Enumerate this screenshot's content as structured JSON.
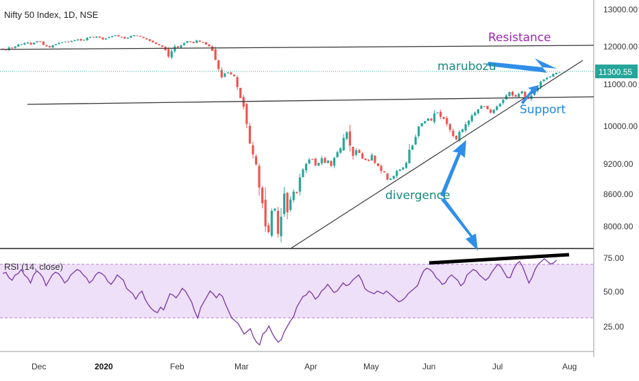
{
  "chart_title": "Nifty 50 Index, 1D, NSE",
  "price_label": "11300.55",
  "colors": {
    "up": "#26a69a",
    "down": "#ef5350",
    "rsi_line": "#7e3fa8",
    "rsi_band": "#e9d6f7",
    "price_line": "#26a69a",
    "resistance_text": "#9c27b0",
    "support_text": "#1e88e5",
    "marubozu_text": "#18897f",
    "divergence_text": "#18897f",
    "arrow": "#2f8fe8"
  },
  "annotations": {
    "resistance": "Resistance",
    "support": "Support",
    "marubozu": "marubozu",
    "divergence": "divergence"
  },
  "chart_data": [
    {
      "type": "candlestick",
      "title": "Nifty 50 Index, 1D, NSE",
      "y_ticks": [
        "13000.00",
        "12000.00",
        "11000.00",
        "10000.00",
        "9200.00",
        "8600.00",
        "8000.00"
      ],
      "x_ticks": [
        "Dec",
        "2020",
        "Feb",
        "Mar",
        "Apr",
        "May",
        "Jun",
        "Jul",
        "Aug"
      ],
      "last_price": 11300.55,
      "ohlc_note": "approximate daily closes read from chart",
      "closes": [
        11910,
        11900,
        11960,
        11940,
        11990,
        12040,
        12050,
        12080,
        12100,
        12040,
        12090,
        12130,
        12110,
        12030,
        11990,
        11960,
        12020,
        12050,
        12090,
        12100,
        12120,
        12110,
        12140,
        12160,
        12180,
        12150,
        12170,
        12230,
        12250,
        12240,
        12260,
        12230,
        12180,
        12210,
        12250,
        12270,
        12290,
        12260,
        12240,
        12200,
        12230,
        12280,
        12300,
        12280,
        12260,
        12220,
        12180,
        12140,
        12100,
        12060,
        12020,
        11980,
        11890,
        11720,
        11860,
        11990,
        11960,
        12020,
        12080,
        12130,
        12110,
        12080,
        12150,
        12120,
        12090,
        12040,
        11990,
        11870,
        11630,
        11390,
        11170,
        11270,
        11300,
        11250,
        11200,
        10920,
        10660,
        10450,
        10040,
        9620,
        9390,
        9180,
        8720,
        8420,
        7990,
        7890,
        8280,
        8320,
        7860,
        8170,
        8600,
        8250,
        8490,
        8640,
        8610,
        8920,
        9080,
        9190,
        9280,
        9280,
        9160,
        9210,
        9310,
        9210,
        9260,
        9150,
        9320,
        9440,
        9520,
        9740,
        9860,
        9580,
        9360,
        9480,
        9420,
        9300,
        9270,
        9250,
        9380,
        9210,
        9150,
        9050,
        9020,
        8880,
        8900,
        8950,
        9050,
        9080,
        9120,
        9210,
        9490,
        9580,
        9760,
        9980,
        10060,
        10110,
        10170,
        10120,
        10290,
        10310,
        10210,
        10160,
        10040,
        9910,
        9780,
        9710,
        9870,
        9920,
        10030,
        10120,
        10240,
        10310,
        10390,
        10470,
        10460,
        10390,
        10310,
        10380,
        10460,
        10520,
        10620,
        10720,
        10800,
        10720,
        10690,
        10760,
        10820,
        10690,
        10640,
        10720,
        10820,
        10920,
        11060,
        11110,
        11160,
        11190,
        11260,
        11290,
        11300
      ],
      "lines": {
        "resistance": {
          "label": "Resistance"
        },
        "support": {
          "label": "Support"
        },
        "trendline": {}
      }
    },
    {
      "type": "line",
      "title": "RSI (14, close)",
      "y_ticks": [
        "75.00",
        "50.00",
        "25.00"
      ],
      "ylim": [
        0,
        100
      ],
      "band": [
        30,
        70
      ],
      "values": [
        63,
        64,
        60,
        58,
        62,
        63,
        66,
        62,
        60,
        56,
        62,
        65,
        63,
        60,
        54,
        58,
        62,
        64,
        63,
        60,
        56,
        58,
        62,
        64,
        66,
        65,
        62,
        60,
        56,
        58,
        62,
        64,
        63,
        61,
        57,
        55,
        58,
        62,
        60,
        58,
        52,
        50,
        48,
        44,
        48,
        50,
        44,
        40,
        37,
        35,
        34,
        38,
        36,
        42,
        48,
        47,
        45,
        48,
        52,
        50,
        46,
        42,
        35,
        30,
        38,
        42,
        46,
        50,
        48,
        45,
        48,
        46,
        40,
        35,
        30,
        28,
        26,
        22,
        18,
        20,
        22,
        16,
        12,
        10,
        18,
        20,
        24,
        19,
        15,
        12,
        14,
        20,
        24,
        28,
        31,
        38,
        42,
        46,
        47,
        50,
        48,
        44,
        46,
        50,
        52,
        55,
        52,
        49,
        50,
        53,
        56,
        54,
        55,
        58,
        60,
        62,
        58,
        52,
        50,
        49,
        48,
        50,
        49,
        48,
        50,
        48,
        46,
        44,
        42,
        43,
        45,
        48,
        50,
        52,
        54,
        60,
        65,
        67,
        66,
        64,
        60,
        58,
        55,
        56,
        60,
        62,
        60,
        58,
        54,
        56,
        62,
        64,
        66,
        65,
        62,
        60,
        58,
        60,
        64,
        67,
        70,
        68,
        64,
        60,
        60,
        66,
        70,
        72,
        68,
        62,
        56,
        60,
        66,
        70,
        72,
        74,
        72,
        70,
        71,
        73
      ],
      "divergence_line": {}
    }
  ]
}
